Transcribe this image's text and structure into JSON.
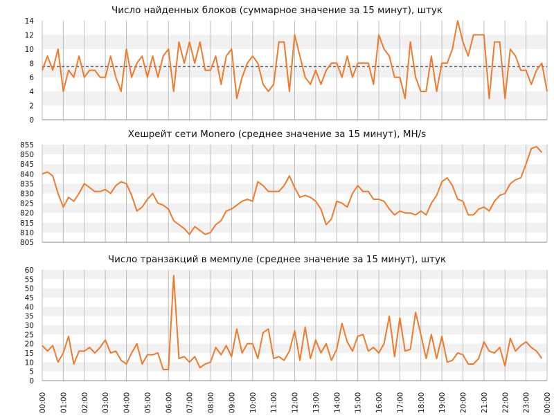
{
  "colors": {
    "series": "#f07a2a",
    "band": "#f1f1f1",
    "grid": "#bdbdbd",
    "mean_line": "#222222",
    "axis": "#888888"
  },
  "time_labels": [
    "00:00",
    "01:00",
    "02:00",
    "03:00",
    "04:00",
    "05:00",
    "06:00",
    "07:00",
    "08:00",
    "09:00",
    "10:00",
    "11:00",
    "12:00",
    "13:00",
    "14:00",
    "15:00",
    "16:00",
    "17:00",
    "18:00",
    "19:00",
    "20:00",
    "21:00",
    "22:00",
    "23:00",
    "00:00"
  ],
  "chart_data": [
    {
      "type": "line",
      "title": "Число найденных блоков (суммарное значение за 15 минут), штук",
      "xlabel": "",
      "ylabel": "",
      "ylim": [
        0,
        14
      ],
      "yticks": [
        0,
        2,
        4,
        6,
        8,
        10,
        12,
        14
      ],
      "grid": true,
      "mean_line": 7.5,
      "x_start": "00:00",
      "x_end": "00:00",
      "x_step_minutes": 15,
      "series": [
        {
          "values": [
            7,
            9,
            7,
            10,
            4,
            7,
            6,
            9,
            6,
            7,
            7,
            6,
            6,
            9,
            6,
            4,
            10,
            6,
            8,
            9,
            6,
            9,
            6,
            9,
            10,
            4,
            11,
            8,
            11,
            8,
            11,
            7,
            7,
            9,
            5,
            9,
            10,
            3,
            6,
            8,
            9,
            8,
            5,
            4,
            5,
            11,
            11,
            4,
            12,
            9,
            6,
            5,
            7,
            5,
            7,
            8,
            8,
            6,
            9,
            6,
            8,
            8,
            8,
            5,
            12,
            10,
            9,
            6,
            6,
            3,
            11,
            6,
            4,
            4,
            9,
            4,
            8,
            8,
            10,
            14,
            11,
            9,
            12,
            12,
            12,
            3,
            11,
            11,
            3,
            10,
            9,
            7,
            7,
            5,
            7,
            8,
            4
          ]
        }
      ]
    },
    {
      "type": "line",
      "title": "Хешрейт сети Monero (среднее значение за 15 минут), MH/s",
      "xlabel": "",
      "ylabel": "",
      "ylim": [
        805,
        855
      ],
      "yticks": [
        805,
        810,
        815,
        820,
        825,
        830,
        835,
        840,
        845,
        850,
        855
      ],
      "grid": true,
      "x_start": "00:00",
      "x_end": "00:00",
      "x_step_minutes": 15,
      "series": [
        {
          "values": [
            840,
            841,
            839,
            830,
            823,
            828,
            826,
            830,
            835,
            833,
            831,
            831,
            832,
            830,
            834,
            836,
            835,
            829,
            821,
            823,
            827,
            830,
            825,
            824,
            822,
            816,
            814,
            812,
            809,
            813,
            811,
            809,
            810,
            814,
            816,
            821,
            822,
            824,
            826,
            827,
            826,
            836,
            834,
            831,
            831,
            831,
            834,
            839,
            833,
            828,
            829,
            828,
            826,
            822,
            814,
            817,
            826,
            825,
            823,
            830,
            834,
            831,
            831,
            827,
            827,
            826,
            822,
            819,
            821,
            820,
            820,
            819,
            821,
            819,
            825,
            829,
            836,
            838,
            834,
            827,
            826,
            819,
            819,
            822,
            823,
            821,
            826,
            829,
            830,
            835,
            837,
            838,
            845,
            853,
            854,
            851
          ]
        }
      ]
    },
    {
      "type": "line",
      "title": "Число транзакций в мемпуле (среднее значение за 15 минут), штук",
      "xlabel": "",
      "ylabel": "",
      "ylim": [
        0,
        60
      ],
      "yticks": [
        0,
        5,
        10,
        15,
        20,
        25,
        30,
        35,
        40,
        45,
        50,
        55,
        60
      ],
      "grid": true,
      "x_start": "00:00",
      "x_end": "00:00",
      "x_step_minutes": 15,
      "series": [
        {
          "values": [
            19,
            16,
            19,
            10,
            15,
            24,
            9,
            16,
            16,
            18,
            15,
            18,
            22,
            15,
            16,
            11,
            9,
            15,
            20,
            9,
            14,
            14,
            15,
            6,
            6,
            57,
            12,
            13,
            10,
            13,
            7,
            9,
            10,
            18,
            14,
            19,
            13,
            28,
            15,
            20,
            20,
            12,
            26,
            28,
            12,
            13,
            11,
            16,
            27,
            11,
            29,
            12,
            22,
            15,
            20,
            11,
            17,
            31,
            21,
            16,
            24,
            25,
            16,
            18,
            15,
            20,
            35,
            13,
            34,
            16,
            17,
            37,
            25,
            12,
            25,
            12,
            24,
            10,
            11,
            15,
            14,
            9,
            9,
            12,
            21,
            16,
            15,
            18,
            8,
            23,
            16,
            19,
            21,
            18,
            16,
            12
          ]
        }
      ]
    }
  ]
}
